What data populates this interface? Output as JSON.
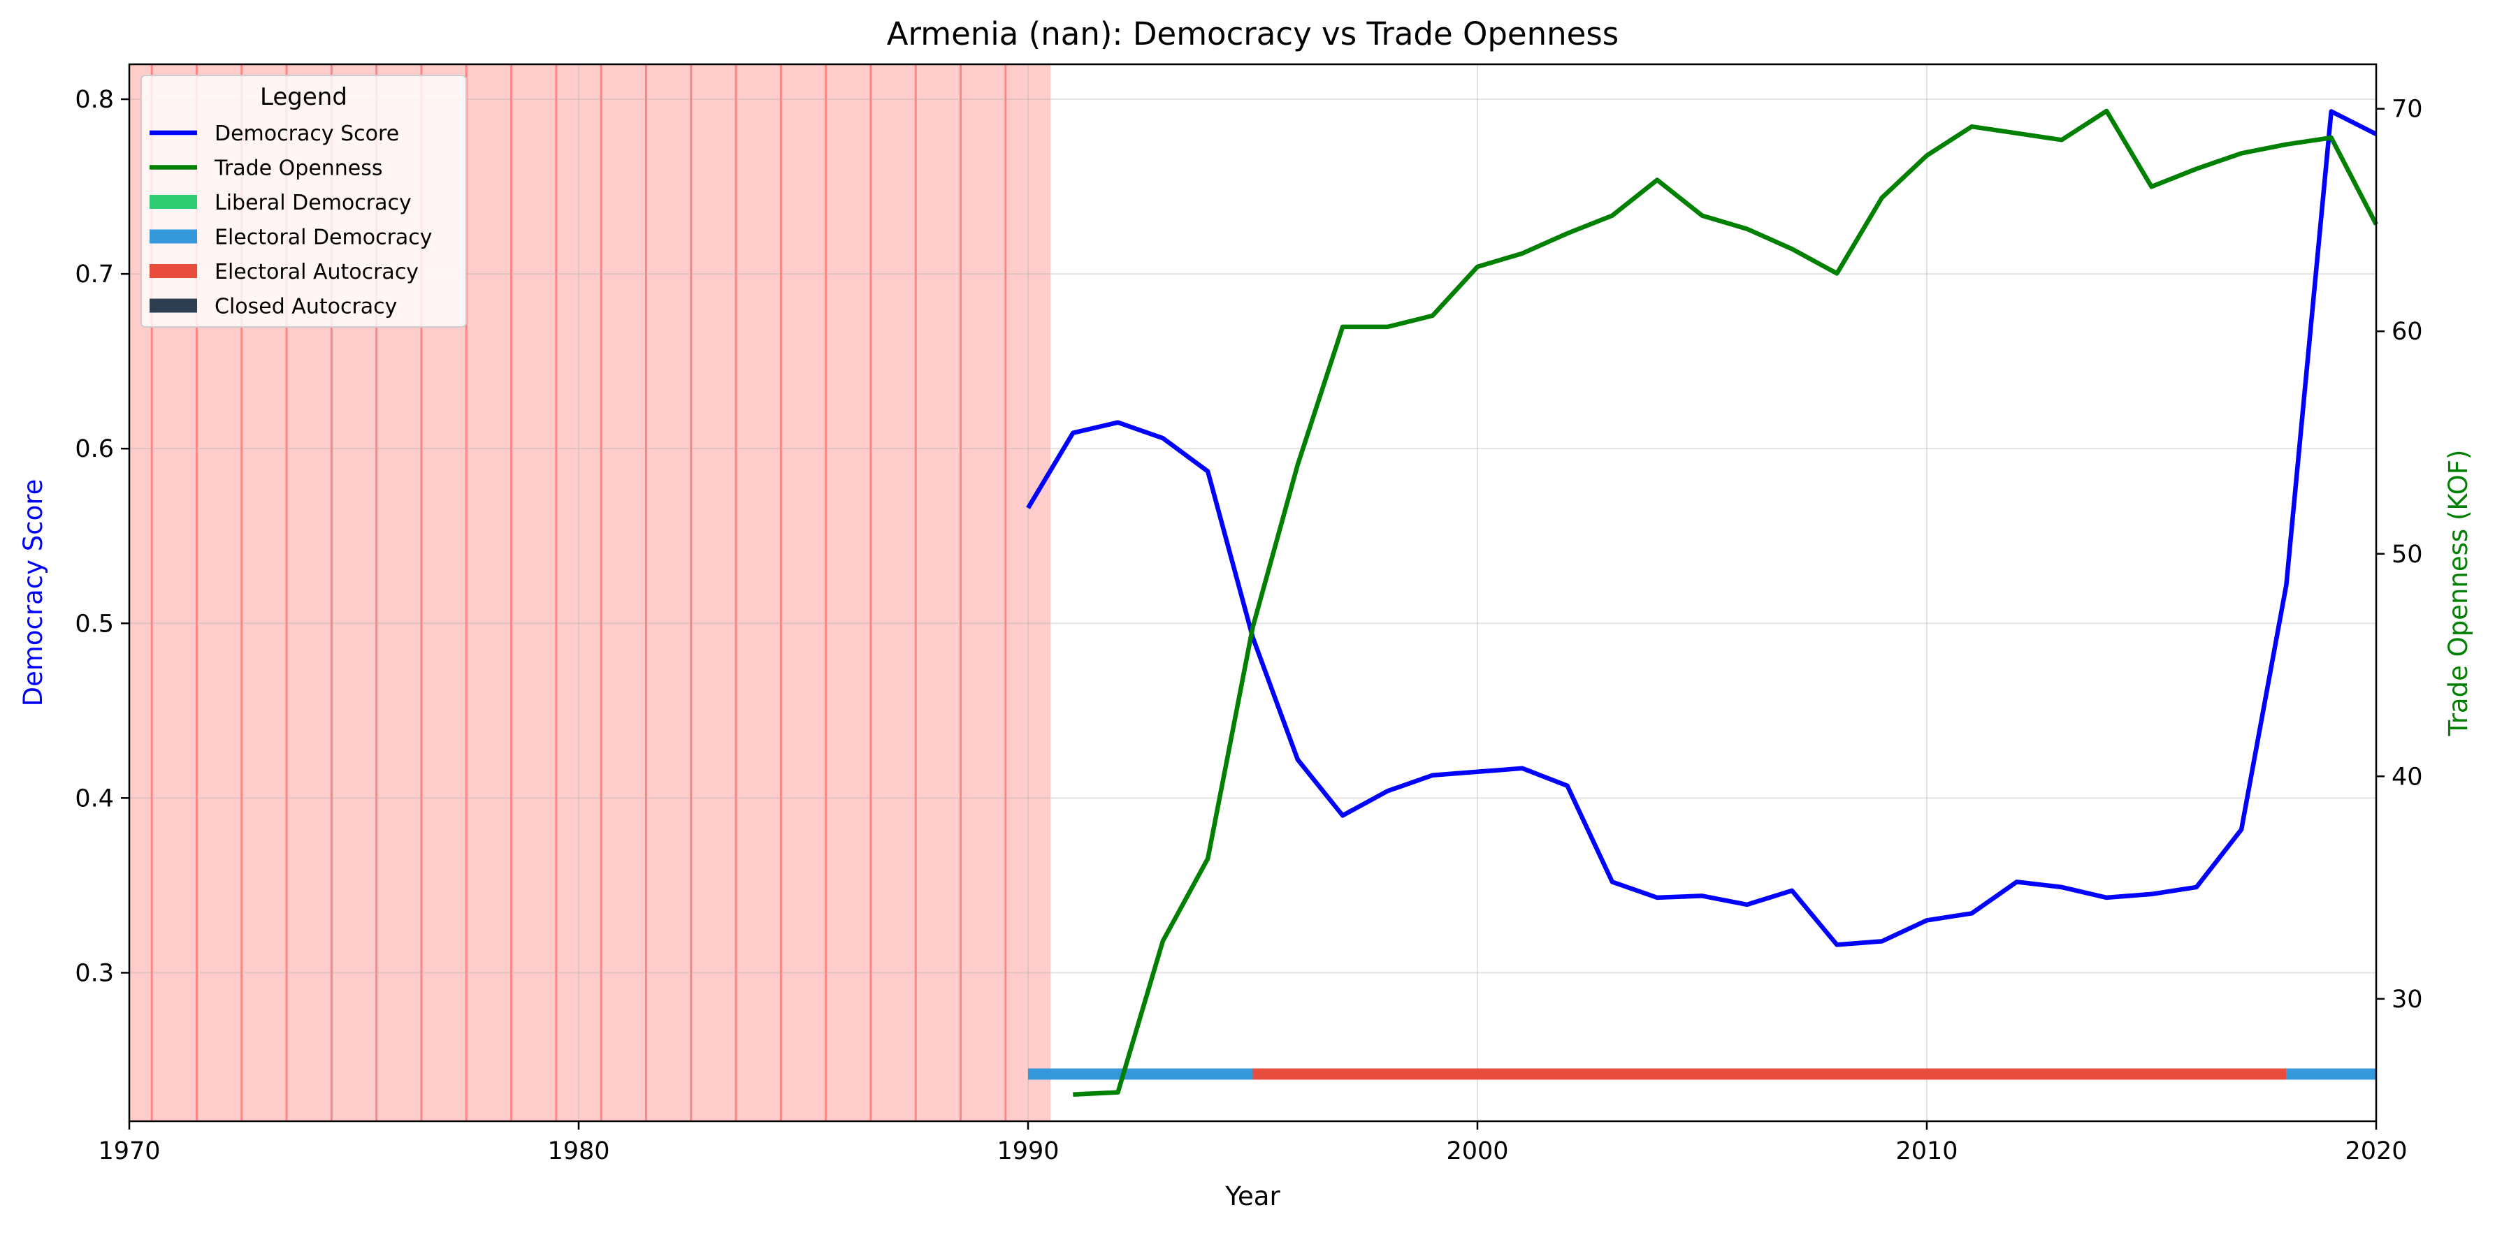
{
  "chart_data": {
    "type": "line",
    "title": "Armenia (nan): Democracy vs Trade Openness",
    "xlabel": "Year",
    "ylabel_left": "Democracy Score",
    "ylabel_right": "Trade Openness (KOF)",
    "xlim": [
      1970,
      2020
    ],
    "ylim_left": [
      0.215,
      0.82
    ],
    "ylim_right": [
      24.5,
      72
    ],
    "x_ticks": [
      "1970",
      "1980",
      "1990",
      "2000",
      "2010",
      "2020"
    ],
    "y_left_ticks": [
      "0.3",
      "0.4",
      "0.5",
      "0.6",
      "0.7",
      "0.8"
    ],
    "y_right_ticks": [
      "30",
      "40",
      "50",
      "60",
      "70"
    ],
    "grid": true,
    "legend_placement": "top-left",
    "legend": {
      "title": "Legend",
      "items": [
        {
          "label": "Democracy Score",
          "kind": "line",
          "color": "#0000ff"
        },
        {
          "label": "Trade Openness",
          "kind": "line",
          "color": "#008000"
        },
        {
          "label": "Liberal Democracy",
          "kind": "patch",
          "color": "#2ecc71"
        },
        {
          "label": "Electoral Democracy",
          "kind": "patch",
          "color": "#3498db"
        },
        {
          "label": "Electoral Autocracy",
          "kind": "patch",
          "color": "#e74c3c"
        },
        {
          "label": "Closed Autocracy",
          "kind": "patch",
          "color": "#2c3e50"
        }
      ]
    },
    "series": [
      {
        "name": "Democracy Score",
        "axis": "left",
        "color": "#0000ff",
        "x": [
          1990,
          1991,
          1992,
          1993,
          1994,
          1995,
          1996,
          1997,
          1998,
          1999,
          2000,
          2001,
          2002,
          2003,
          2004,
          2005,
          2006,
          2007,
          2008,
          2009,
          2010,
          2011,
          2012,
          2013,
          2014,
          2015,
          2016,
          2017,
          2018,
          2019,
          2020
        ],
        "values": [
          0.566,
          0.609,
          0.615,
          0.606,
          0.587,
          0.492,
          0.422,
          0.39,
          0.404,
          0.413,
          0.415,
          0.417,
          0.407,
          0.352,
          0.343,
          0.344,
          0.339,
          0.347,
          0.316,
          0.318,
          0.33,
          0.334,
          0.352,
          0.349,
          0.343,
          0.345,
          0.349,
          0.382,
          0.522,
          0.793,
          0.78
        ]
      },
      {
        "name": "Trade Openness",
        "axis": "right",
        "color": "#008000",
        "x": [
          1991,
          1992,
          1993,
          1994,
          1995,
          1996,
          1997,
          1998,
          1999,
          2000,
          2001,
          2002,
          2003,
          2004,
          2005,
          2006,
          2007,
          2008,
          2009,
          2010,
          2011,
          2012,
          2013,
          2014,
          2015,
          2016,
          2017,
          2018,
          2019,
          2020
        ],
        "values": [
          25.7,
          25.8,
          32.6,
          36.3,
          46.7,
          54.0,
          60.2,
          60.2,
          60.7,
          62.9,
          63.5,
          64.4,
          65.2,
          66.8,
          65.2,
          64.6,
          63.7,
          62.6,
          66.0,
          67.9,
          69.2,
          68.9,
          68.6,
          69.9,
          66.5,
          67.3,
          68.0,
          68.4,
          68.7,
          64.8
        ]
      }
    ],
    "shaded_region": {
      "x_start": 1970,
      "x_end": 1990.5,
      "color": "#ff0000",
      "note_lines_every_year": true
    },
    "regime_bar": {
      "y_value": 0.242,
      "segments": [
        {
          "start": 1990,
          "end": 1995,
          "regime": "Electoral Democracy",
          "color": "#3498db"
        },
        {
          "start": 1995,
          "end": 2018,
          "regime": "Electoral Autocracy",
          "color": "#e74c3c"
        },
        {
          "start": 2018,
          "end": 2020,
          "regime": "Electoral Democracy",
          "color": "#3498db"
        }
      ]
    }
  }
}
